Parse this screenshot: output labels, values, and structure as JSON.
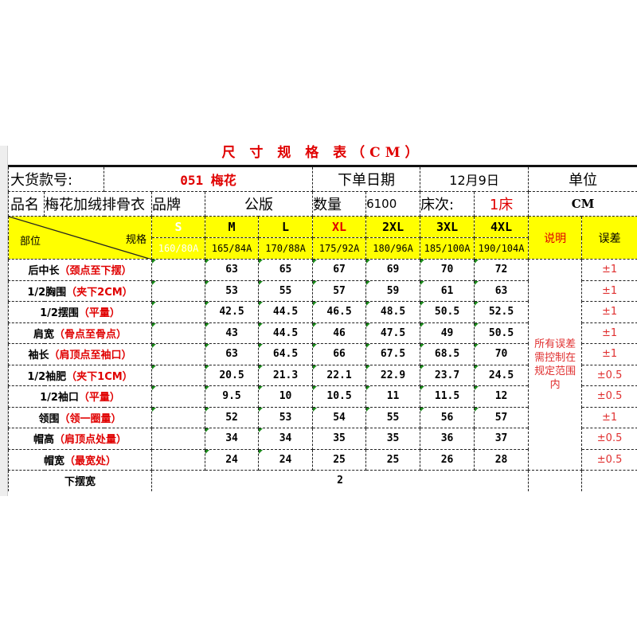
{
  "title": "尺 寸 规 格 表（CM）",
  "info": {
    "style_label": "大货款号:",
    "style_value": "051 梅花",
    "order_date_label": "下单日期",
    "order_date_value": "12月9日",
    "unit_label": "单位",
    "name_label": "品名",
    "name_value": "梅花加绒排骨衣",
    "brand_label": "品牌",
    "brand_value": "公版",
    "qty_label": "数量",
    "qty_value": "6100",
    "bed_label": "床次:",
    "bed_value": "1床",
    "unit_value": "CM"
  },
  "header": {
    "part_label": "部位",
    "spec_label": "规格",
    "sizes": [
      "S",
      "M",
      "L",
      "XL",
      "2XL",
      "3XL",
      "4XL"
    ],
    "chest": [
      "160/80A",
      "165/84A",
      "170/88A",
      "175/92A",
      "180/96A",
      "185/100A",
      "190/104A"
    ],
    "note_label": "说明",
    "tolerance_label": "误差"
  },
  "colors": {
    "header_bg": "#ffff00",
    "accent_red": "#e00000",
    "marker": "#1a8a1a"
  },
  "rows": [
    {
      "part": "后中长",
      "detail": "（颈点至下摆）",
      "values": [
        "",
        "63",
        "65",
        "67",
        "69",
        "70",
        "72"
      ],
      "tol": "±1"
    },
    {
      "part": "1/2胸围",
      "detail": "（夹下2CM）",
      "values": [
        "",
        "53",
        "55",
        "57",
        "59",
        "61",
        "63"
      ],
      "tol": "±1"
    },
    {
      "part": "1/2摆围",
      "detail": "（平量）",
      "values": [
        "",
        "42.5",
        "44.5",
        "46.5",
        "48.5",
        "50.5",
        "52.5"
      ],
      "tol": "±1"
    },
    {
      "part": "肩宽",
      "detail": "（骨点至骨点）",
      "values": [
        "",
        "43",
        "44.5",
        "46",
        "47.5",
        "49",
        "50.5"
      ],
      "tol": "±1"
    },
    {
      "part": "袖长",
      "detail": "（肩顶点至袖口）",
      "values": [
        "",
        "63",
        "64.5",
        "66",
        "67.5",
        "68.5",
        "70"
      ],
      "tol": "±1"
    },
    {
      "part": "1/2袖肥",
      "detail": "（夹下1CM）",
      "values": [
        "",
        "20.5",
        "21.3",
        "22.1",
        "22.9",
        "23.7",
        "24.5"
      ],
      "tol": "±0.5"
    },
    {
      "part": "1/2袖口",
      "detail": "（平量）",
      "values": [
        "",
        "9.5",
        "10",
        "10.5",
        "11",
        "11.5",
        "12"
      ],
      "tol": "±0.5"
    },
    {
      "part": "领围",
      "detail": "（领一圈量）",
      "values": [
        "",
        "52",
        "53",
        "54",
        "55",
        "56",
        "57"
      ],
      "tol": "±1"
    },
    {
      "part": "帽高",
      "detail": "（肩顶点处量）",
      "values": [
        "",
        "34",
        "34",
        "35",
        "35",
        "36",
        "37"
      ],
      "tol": "±0.5"
    },
    {
      "part": "帽宽",
      "detail": "（最宽处）",
      "values": [
        "",
        "24",
        "24",
        "25",
        "25",
        "26",
        "28"
      ],
      "tol": "±0.5"
    }
  ],
  "note": "所有误差需控制在规定范围内",
  "hem": {
    "label": "下摆宽",
    "value": "2"
  }
}
